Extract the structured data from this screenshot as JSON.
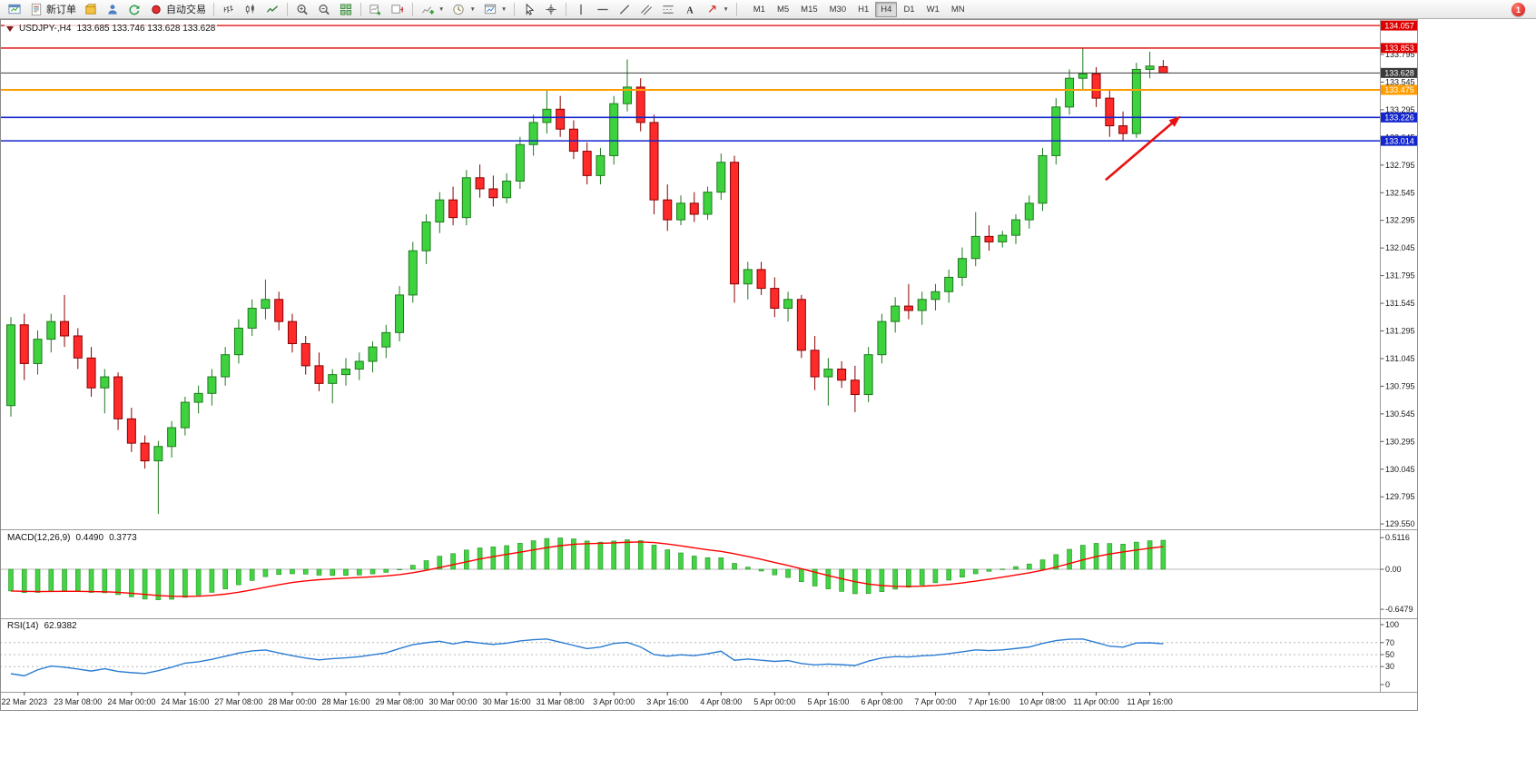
{
  "toolbar": {
    "buttons": [
      {
        "name": "new-chart",
        "icon": "chart-window"
      },
      {
        "name": "new-order",
        "icon": "new-order",
        "label": "新订单"
      },
      {
        "name": "market-watch",
        "icon": "box"
      },
      {
        "name": "profile",
        "icon": "person"
      },
      {
        "name": "community-refresh",
        "icon": "refresh"
      },
      {
        "name": "auto-trading",
        "icon": "autotrade",
        "label": "自动交易"
      },
      {
        "sep": true
      },
      {
        "name": "chart-bars",
        "icon": "bars"
      },
      {
        "name": "chart-candles",
        "icon": "candles"
      },
      {
        "name": "chart-line",
        "icon": "linechart"
      },
      {
        "sep": true
      },
      {
        "name": "zoom-in",
        "icon": "zoom-in"
      },
      {
        "name": "zoom-out",
        "icon": "zoom-out"
      },
      {
        "name": "tile-windows",
        "icon": "tile"
      },
      {
        "sep": true
      },
      {
        "name": "auto-scroll",
        "icon": "autoscroll"
      },
      {
        "name": "chart-shift",
        "icon": "shift"
      },
      {
        "sep": true
      },
      {
        "name": "indicators",
        "icon": "indicators",
        "caret": true
      },
      {
        "name": "periods",
        "icon": "clock",
        "caret": true
      },
      {
        "name": "templates",
        "icon": "template",
        "caret": true
      },
      {
        "sep": true
      },
      {
        "name": "cursor",
        "icon": "cursor"
      },
      {
        "name": "crosshair",
        "icon": "crosshair"
      },
      {
        "sep": true
      },
      {
        "name": "vertical-line",
        "icon": "vline"
      },
      {
        "name": "horizontal-line",
        "icon": "hline"
      },
      {
        "name": "trendline",
        "icon": "tline"
      },
      {
        "name": "equidistant-channel",
        "icon": "channel"
      },
      {
        "name": "fibonacci",
        "icon": "fibo"
      },
      {
        "name": "text-label",
        "icon": "textA"
      },
      {
        "name": "arrow-objects",
        "icon": "shapes",
        "caret": true
      },
      {
        "sep": true
      }
    ],
    "timeframes": {
      "items": [
        "M1",
        "M5",
        "M15",
        "M30",
        "H1",
        "H4",
        "D1",
        "W1",
        "MN"
      ],
      "active": "H4"
    },
    "notification_count": "1"
  },
  "chart_header": {
    "symbol_timeframe": "USDJPY-,H4",
    "ohlc": "133.685 133.746 133.628 133.628"
  },
  "chart_data": {
    "type": "candlestick",
    "symbol": "USDJPY-",
    "timeframe": "H4",
    "y_axis_labels": [
      "133.795",
      "133.545",
      "133.295",
      "133.045",
      "132.795",
      "132.545",
      "132.295",
      "132.045",
      "131.795",
      "131.545",
      "131.295",
      "131.045",
      "130.795",
      "130.545",
      "130.295",
      "130.045",
      "129.795",
      "129.550"
    ],
    "price_lines": [
      {
        "price": 134.057,
        "label": "134.057",
        "color": "#dd0000",
        "width": 1.3
      },
      {
        "price": 133.853,
        "label": "133.853",
        "color": "#dd0000",
        "width": 1.3
      },
      {
        "price": 133.628,
        "label": "133.628",
        "color": "#3a3a3a",
        "width": 1,
        "current": true
      },
      {
        "price": 133.475,
        "label": "133.475",
        "color": "#ff9d00",
        "width": 2
      },
      {
        "price": 133.226,
        "label": "133.226",
        "color": "#1326cc",
        "width": 1.6
      },
      {
        "price": 133.014,
        "label": "133.014",
        "color": "#1326cc",
        "width": 1.6
      }
    ],
    "candles": [
      [
        130.62,
        131.42,
        130.52,
        131.35
      ],
      [
        131.35,
        131.45,
        130.85,
        131.0
      ],
      [
        131.0,
        131.3,
        130.9,
        131.22
      ],
      [
        131.22,
        131.45,
        131.1,
        131.38
      ],
      [
        131.38,
        131.62,
        131.15,
        131.25
      ],
      [
        131.25,
        131.32,
        130.95,
        131.05
      ],
      [
        131.05,
        131.15,
        130.7,
        130.78
      ],
      [
        130.78,
        130.95,
        130.55,
        130.88
      ],
      [
        130.88,
        130.92,
        130.4,
        130.5
      ],
      [
        130.5,
        130.6,
        130.2,
        130.28
      ],
      [
        130.28,
        130.35,
        130.05,
        130.12
      ],
      [
        130.12,
        130.3,
        129.64,
        130.25
      ],
      [
        130.25,
        130.48,
        130.15,
        130.42
      ],
      [
        130.42,
        130.7,
        130.35,
        130.65
      ],
      [
        130.65,
        130.8,
        130.55,
        130.73
      ],
      [
        130.73,
        130.95,
        130.62,
        130.88
      ],
      [
        130.88,
        131.15,
        130.8,
        131.08
      ],
      [
        131.08,
        131.4,
        131.0,
        131.32
      ],
      [
        131.32,
        131.58,
        131.25,
        131.5
      ],
      [
        131.5,
        131.76,
        131.4,
        131.58
      ],
      [
        131.58,
        131.65,
        131.3,
        131.38
      ],
      [
        131.38,
        131.45,
        131.1,
        131.18
      ],
      [
        131.18,
        131.25,
        130.9,
        130.98
      ],
      [
        130.98,
        131.1,
        130.75,
        130.82
      ],
      [
        130.82,
        130.95,
        130.64,
        130.9
      ],
      [
        130.9,
        131.05,
        130.8,
        130.95
      ],
      [
        130.95,
        131.1,
        130.85,
        131.02
      ],
      [
        131.02,
        131.2,
        130.92,
        131.15
      ],
      [
        131.15,
        131.35,
        131.05,
        131.28
      ],
      [
        131.28,
        131.7,
        131.2,
        131.62
      ],
      [
        131.62,
        132.1,
        131.55,
        132.02
      ],
      [
        132.02,
        132.35,
        131.9,
        132.28
      ],
      [
        132.28,
        132.55,
        132.18,
        132.48
      ],
      [
        132.48,
        132.6,
        132.25,
        132.32
      ],
      [
        132.32,
        132.75,
        132.25,
        132.68
      ],
      [
        132.68,
        132.8,
        132.5,
        132.58
      ],
      [
        132.58,
        132.7,
        132.42,
        132.5
      ],
      [
        132.5,
        132.72,
        132.45,
        132.65
      ],
      [
        132.65,
        133.05,
        132.58,
        132.98
      ],
      [
        132.98,
        133.25,
        132.88,
        133.18
      ],
      [
        133.18,
        133.48,
        133.08,
        133.3
      ],
      [
        133.3,
        133.42,
        133.05,
        133.12
      ],
      [
        133.12,
        133.2,
        132.85,
        132.92
      ],
      [
        132.92,
        133.0,
        132.62,
        132.7
      ],
      [
        132.7,
        132.95,
        132.62,
        132.88
      ],
      [
        132.88,
        133.42,
        132.8,
        133.35
      ],
      [
        133.35,
        133.75,
        133.28,
        133.5
      ],
      [
        133.5,
        133.58,
        133.1,
        133.18
      ],
      [
        133.18,
        133.25,
        132.35,
        132.48
      ],
      [
        132.48,
        132.62,
        132.2,
        132.3
      ],
      [
        132.3,
        132.52,
        132.25,
        132.45
      ],
      [
        132.45,
        132.55,
        132.28,
        132.35
      ],
      [
        132.35,
        132.6,
        132.3,
        132.55
      ],
      [
        132.55,
        132.9,
        132.48,
        132.82
      ],
      [
        132.82,
        132.88,
        131.55,
        131.72
      ],
      [
        131.72,
        131.92,
        131.58,
        131.85
      ],
      [
        131.85,
        131.92,
        131.62,
        131.68
      ],
      [
        131.68,
        131.78,
        131.42,
        131.5
      ],
      [
        131.5,
        131.65,
        131.38,
        131.58
      ],
      [
        131.58,
        131.62,
        131.05,
        131.12
      ],
      [
        131.12,
        131.25,
        130.76,
        130.88
      ],
      [
        130.88,
        131.05,
        130.62,
        130.95
      ],
      [
        130.95,
        131.02,
        130.78,
        130.85
      ],
      [
        130.85,
        130.98,
        130.56,
        130.72
      ],
      [
        130.72,
        131.15,
        130.65,
        131.08
      ],
      [
        131.08,
        131.45,
        131.0,
        131.38
      ],
      [
        131.38,
        131.6,
        131.28,
        131.52
      ],
      [
        131.52,
        131.72,
        131.4,
        131.48
      ],
      [
        131.48,
        131.65,
        131.35,
        131.58
      ],
      [
        131.58,
        131.72,
        131.48,
        131.65
      ],
      [
        131.65,
        131.85,
        131.55,
        131.78
      ],
      [
        131.78,
        132.05,
        131.7,
        131.95
      ],
      [
        131.95,
        132.37,
        131.88,
        132.15
      ],
      [
        132.15,
        132.25,
        132.02,
        132.1
      ],
      [
        132.1,
        132.2,
        132.05,
        132.16
      ],
      [
        132.16,
        132.35,
        132.08,
        132.3
      ],
      [
        132.3,
        132.52,
        132.22,
        132.45
      ],
      [
        132.45,
        132.95,
        132.38,
        132.88
      ],
      [
        132.88,
        133.4,
        132.8,
        133.32
      ],
      [
        133.32,
        133.66,
        133.25,
        133.58
      ],
      [
        133.58,
        133.85,
        133.48,
        133.62
      ],
      [
        133.62,
        133.68,
        133.32,
        133.4
      ],
      [
        133.4,
        133.48,
        133.05,
        133.15
      ],
      [
        133.15,
        133.28,
        133.01,
        133.08
      ],
      [
        133.08,
        133.72,
        133.04,
        133.66
      ],
      [
        133.66,
        133.82,
        133.58,
        133.69
      ],
      [
        133.685,
        133.746,
        133.628,
        133.628
      ]
    ],
    "time_labels": [
      "22 Mar 2023",
      "23 Mar 08:00",
      "24 Mar 00:00",
      "24 Mar 16:00",
      "27 Mar 08:00",
      "28 Mar 00:00",
      "28 Mar 16:00",
      "29 Mar 08:00",
      "30 Mar 00:00",
      "30 Mar 16:00",
      "31 Mar 08:00",
      "3 Apr 00:00",
      "3 Apr 16:00",
      "4 Apr 08:00",
      "5 Apr 00:00",
      "5 Apr 16:00",
      "6 Apr 08:00",
      "7 Apr 00:00",
      "7 Apr 16:00",
      "10 Apr 08:00",
      "11 Apr 00:00",
      "11 Apr 16:00"
    ],
    "time_label_start_index": 1,
    "time_label_step": 4,
    "annotation_arrow": {
      "from_index": 81.7,
      "from_price": 132.66,
      "to_index": 87.3,
      "to_price": 133.24,
      "color": "#e81111"
    },
    "indicators": {
      "macd": {
        "label": "MACD(12,26,9)",
        "main_value": "0.4490",
        "signal_value": "0.3773",
        "fast": 12,
        "slow": 26,
        "signal": 9,
        "axis_labels": [
          "0.5116",
          "0.00",
          "-0.6479"
        ],
        "warmup": {
          "ema_fast": 131.7,
          "ema_slow": 132.05
        },
        "histogram_color": "#44d344",
        "histogram_stroke": "#249424",
        "signal_color": "#ff0000"
      },
      "rsi": {
        "label": "RSI(14)",
        "value": "62.9382",
        "period": 14,
        "axis_labels": [
          "100",
          "70",
          "50",
          "30",
          "0"
        ],
        "levels": [
          70,
          50,
          30
        ],
        "warmup": {
          "avg_gain": 0.02,
          "avg_loss": 0.09
        },
        "line_color": "#2b7cd3"
      }
    },
    "colors": {
      "bull_fill": "#3fd23f",
      "bull_stroke": "#1e7a1e",
      "bear_fill": "#ff2a2a",
      "bear_stroke": "#8b0000",
      "background": "#ffffff",
      "axis_text": "#1a1a1a",
      "separator": "#9a9a9a"
    }
  }
}
